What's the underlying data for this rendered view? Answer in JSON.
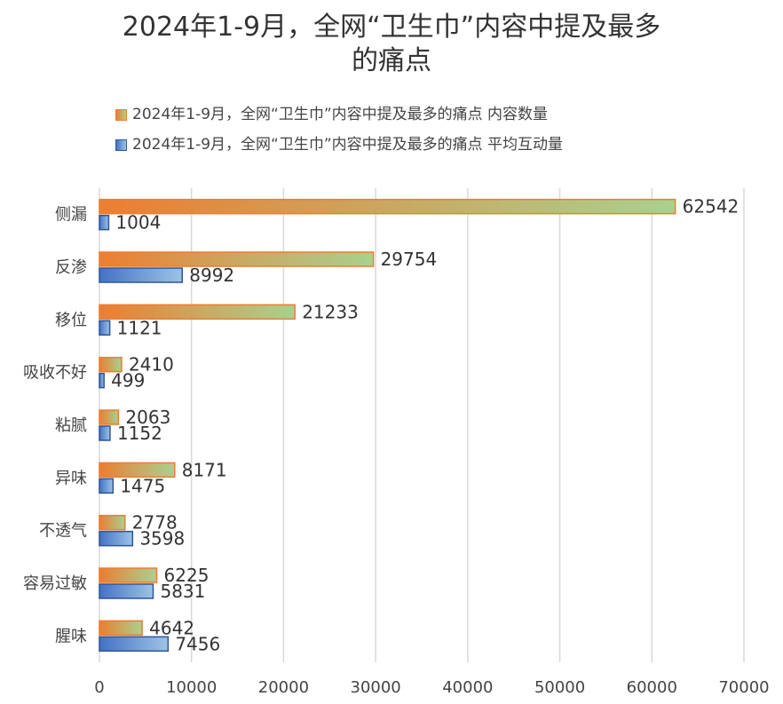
{
  "chart_data": {
    "type": "bar",
    "orientation": "horizontal",
    "title_lines": [
      "2024年1-9月，全网“卫生巾”内容中提及最多",
      "的痛点"
    ],
    "categories": [
      "侧漏",
      "反渗",
      "移位",
      "吸收不好",
      "粘腻",
      "异味",
      "不透气",
      "容易过敏",
      "腥味"
    ],
    "series": [
      {
        "name": "2024年1-9月，全网“卫生巾”内容中提及最多的痛点 内容数量",
        "values": [
          62542,
          29754,
          21233,
          2410,
          2063,
          8171,
          2778,
          6225,
          4642
        ],
        "color_start": "#ED7D31",
        "color_end": "#A9D18E",
        "border": "#ED7D31"
      },
      {
        "name": "2024年1-9月，全网“卫生巾”内容中提及最多的痛点 平均互动量",
        "values": [
          1004,
          8992,
          1121,
          499,
          1152,
          1475,
          3598,
          5831,
          7456
        ],
        "color_start": "#4472C4",
        "color_end": "#9DC3E6",
        "border": "#2F5597"
      }
    ],
    "xlim": [
      0,
      70000
    ],
    "xticks": [
      0,
      10000,
      20000,
      30000,
      40000,
      50000,
      60000,
      70000
    ],
    "grid": true,
    "legend_position": "top"
  }
}
